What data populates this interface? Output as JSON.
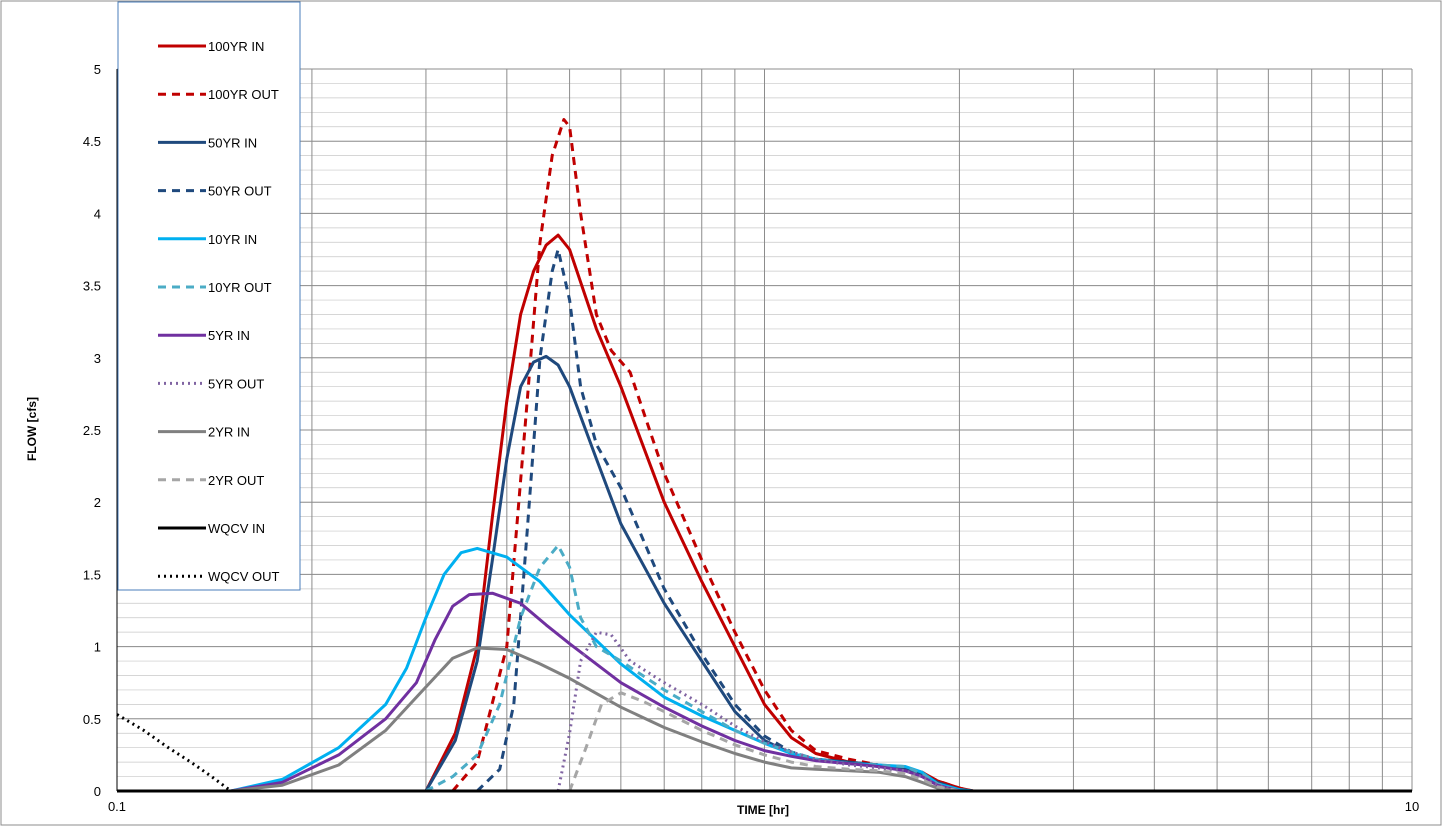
{
  "chart_data": {
    "type": "line",
    "title": "",
    "xlabel": "TIME [hr]",
    "ylabel": "FLOW [cfs]",
    "x_scale": "log",
    "xlim": [
      0.1,
      10
    ],
    "ylim": [
      0,
      5
    ],
    "x_tick_labels": [
      "0.1",
      "10"
    ],
    "y_tick_labels": [
      "0",
      "0.5",
      "1",
      "1.5",
      "2",
      "2.5",
      "3",
      "3.5",
      "4",
      "4.5",
      "5"
    ],
    "grid": true,
    "legend": "top-left",
    "series": [
      {
        "name": "100YR IN",
        "color": "#C00000",
        "dash": "solid",
        "x": [
          0.3,
          0.333,
          0.36,
          0.38,
          0.4,
          0.42,
          0.44,
          0.46,
          0.48,
          0.5,
          0.55,
          0.6,
          0.7,
          0.8,
          0.9,
          1.0,
          1.1,
          1.2,
          1.35,
          1.5,
          1.65,
          1.75,
          1.85,
          2.0,
          2.1,
          2.2
        ],
        "y": [
          0.0,
          0.4,
          1.0,
          1.9,
          2.7,
          3.3,
          3.6,
          3.78,
          3.85,
          3.75,
          3.2,
          2.8,
          2.0,
          1.45,
          1.0,
          0.6,
          0.37,
          0.26,
          0.2,
          0.17,
          0.15,
          0.13,
          0.07,
          0.02,
          0.0,
          0.0
        ]
      },
      {
        "name": "100YR OUT",
        "color": "#C00000",
        "dash": "8,6",
        "x": [
          0.33,
          0.36,
          0.4,
          0.43,
          0.45,
          0.47,
          0.49,
          0.5,
          0.52,
          0.55,
          0.58,
          0.62,
          0.7,
          0.8,
          0.9,
          1.0,
          1.1,
          1.2,
          1.35,
          1.5,
          1.65,
          1.75,
          1.85,
          2.0,
          2.1
        ],
        "y": [
          0.0,
          0.2,
          1.0,
          2.7,
          3.8,
          4.4,
          4.65,
          4.6,
          4.0,
          3.3,
          3.05,
          2.9,
          2.2,
          1.6,
          1.1,
          0.7,
          0.42,
          0.28,
          0.22,
          0.18,
          0.16,
          0.13,
          0.07,
          0.02,
          0.0
        ]
      },
      {
        "name": "50YR IN",
        "color": "#1F497D",
        "dash": "solid",
        "x": [
          0.3,
          0.333,
          0.36,
          0.38,
          0.4,
          0.42,
          0.44,
          0.46,
          0.48,
          0.5,
          0.55,
          0.6,
          0.7,
          0.8,
          0.9,
          1.0,
          1.1,
          1.2,
          1.35,
          1.5,
          1.65,
          1.75,
          1.85,
          2.0,
          2.1
        ],
        "y": [
          0.0,
          0.35,
          0.9,
          1.6,
          2.3,
          2.8,
          2.97,
          3.01,
          2.95,
          2.8,
          2.3,
          1.85,
          1.3,
          0.9,
          0.55,
          0.35,
          0.26,
          0.22,
          0.2,
          0.18,
          0.15,
          0.12,
          0.06,
          0.01,
          0.0
        ]
      },
      {
        "name": "50YR OUT",
        "color": "#1F497D",
        "dash": "8,6",
        "x": [
          0.36,
          0.39,
          0.41,
          0.43,
          0.45,
          0.47,
          0.48,
          0.5,
          0.52,
          0.55,
          0.6,
          0.7,
          0.8,
          0.9,
          1.0,
          1.1,
          1.2,
          1.35,
          1.5,
          1.65,
          1.75,
          1.85,
          2.0
        ],
        "y": [
          0.0,
          0.15,
          0.6,
          1.8,
          3.0,
          3.6,
          3.75,
          3.4,
          2.8,
          2.4,
          2.1,
          1.4,
          0.95,
          0.6,
          0.38,
          0.27,
          0.22,
          0.2,
          0.18,
          0.15,
          0.12,
          0.06,
          0.0
        ]
      },
      {
        "name": "10YR IN",
        "color": "#00B0F0",
        "dash": "solid",
        "x": [
          0.15,
          0.18,
          0.22,
          0.26,
          0.28,
          0.3,
          0.32,
          0.34,
          0.36,
          0.4,
          0.45,
          0.5,
          0.6,
          0.7,
          0.8,
          0.9,
          1.0,
          1.1,
          1.2,
          1.35,
          1.5,
          1.65,
          1.75,
          1.85,
          2.0,
          2.1
        ],
        "y": [
          0.0,
          0.08,
          0.3,
          0.6,
          0.85,
          1.2,
          1.5,
          1.65,
          1.68,
          1.62,
          1.45,
          1.22,
          0.88,
          0.65,
          0.52,
          0.42,
          0.33,
          0.26,
          0.22,
          0.19,
          0.18,
          0.17,
          0.13,
          0.05,
          0.01,
          0.0
        ]
      },
      {
        "name": "10YR OUT",
        "color": "#4BACC6",
        "dash": "8,6",
        "x": [
          0.3,
          0.33,
          0.36,
          0.39,
          0.42,
          0.45,
          0.48,
          0.5,
          0.52,
          0.55,
          0.6,
          0.7,
          0.8,
          0.9,
          1.0,
          1.1,
          1.2,
          1.35,
          1.5,
          1.65,
          1.75,
          1.85,
          2.0
        ],
        "y": [
          0.0,
          0.1,
          0.25,
          0.6,
          1.2,
          1.55,
          1.7,
          1.55,
          1.2,
          1.0,
          0.9,
          0.7,
          0.55,
          0.42,
          0.33,
          0.27,
          0.22,
          0.19,
          0.18,
          0.17,
          0.12,
          0.05,
          0.0
        ]
      },
      {
        "name": "5YR IN",
        "color": "#7030A0",
        "dash": "solid",
        "x": [
          0.15,
          0.18,
          0.22,
          0.26,
          0.29,
          0.31,
          0.33,
          0.35,
          0.38,
          0.42,
          0.46,
          0.5,
          0.6,
          0.7,
          0.8,
          0.9,
          1.0,
          1.1,
          1.2,
          1.35,
          1.5,
          1.65,
          1.75,
          1.85,
          2.0
        ],
        "y": [
          0.0,
          0.06,
          0.25,
          0.5,
          0.75,
          1.05,
          1.28,
          1.36,
          1.37,
          1.3,
          1.15,
          1.02,
          0.75,
          0.58,
          0.45,
          0.35,
          0.28,
          0.24,
          0.21,
          0.19,
          0.17,
          0.14,
          0.1,
          0.04,
          0.0
        ]
      },
      {
        "name": "5YR OUT",
        "color": "#8064A2",
        "dash": "2,4",
        "x": [
          0.48,
          0.5,
          0.52,
          0.55,
          0.58,
          0.62,
          0.7,
          0.8,
          0.9,
          1.0,
          1.1,
          1.2,
          1.35,
          1.5,
          1.65,
          1.75,
          1.85,
          2.0
        ],
        "y": [
          0.0,
          0.4,
          0.9,
          1.1,
          1.08,
          0.9,
          0.75,
          0.6,
          0.45,
          0.34,
          0.27,
          0.22,
          0.18,
          0.16,
          0.14,
          0.1,
          0.04,
          0.0
        ]
      },
      {
        "name": "2YR IN",
        "color": "#808080",
        "dash": "solid",
        "x": [
          0.15,
          0.18,
          0.22,
          0.26,
          0.3,
          0.33,
          0.36,
          0.4,
          0.45,
          0.5,
          0.6,
          0.7,
          0.8,
          0.9,
          1.0,
          1.1,
          1.2,
          1.35,
          1.5,
          1.65,
          1.75,
          1.85,
          2.0
        ],
        "y": [
          0.0,
          0.04,
          0.18,
          0.42,
          0.72,
          0.92,
          0.99,
          0.98,
          0.88,
          0.78,
          0.58,
          0.44,
          0.34,
          0.26,
          0.2,
          0.16,
          0.15,
          0.14,
          0.13,
          0.1,
          0.06,
          0.02,
          0.0
        ]
      },
      {
        "name": "2YR OUT",
        "color": "#A6A6A6",
        "dash": "8,6",
        "x": [
          0.5,
          0.53,
          0.56,
          0.6,
          0.65,
          0.7,
          0.8,
          0.9,
          1.0,
          1.1,
          1.2,
          1.35,
          1.5,
          1.65,
          1.75,
          1.85,
          2.0
        ],
        "y": [
          0.0,
          0.3,
          0.6,
          0.68,
          0.62,
          0.55,
          0.42,
          0.32,
          0.25,
          0.2,
          0.17,
          0.15,
          0.14,
          0.12,
          0.08,
          0.03,
          0.0
        ]
      },
      {
        "name": "WQCV IN",
        "color": "#000000",
        "dash": "solid",
        "x": [
          0.1,
          10
        ],
        "y": [
          0.0,
          0.0
        ]
      },
      {
        "name": "WQCV OUT",
        "color": "#000000",
        "dash": "2,4",
        "x": [
          0.1,
          0.11,
          0.12,
          0.13,
          0.14,
          0.15,
          0.2,
          1.0,
          10
        ],
        "y": [
          0.53,
          0.42,
          0.3,
          0.2,
          0.1,
          0.0,
          0.0,
          0.0,
          0.0
        ]
      }
    ]
  }
}
